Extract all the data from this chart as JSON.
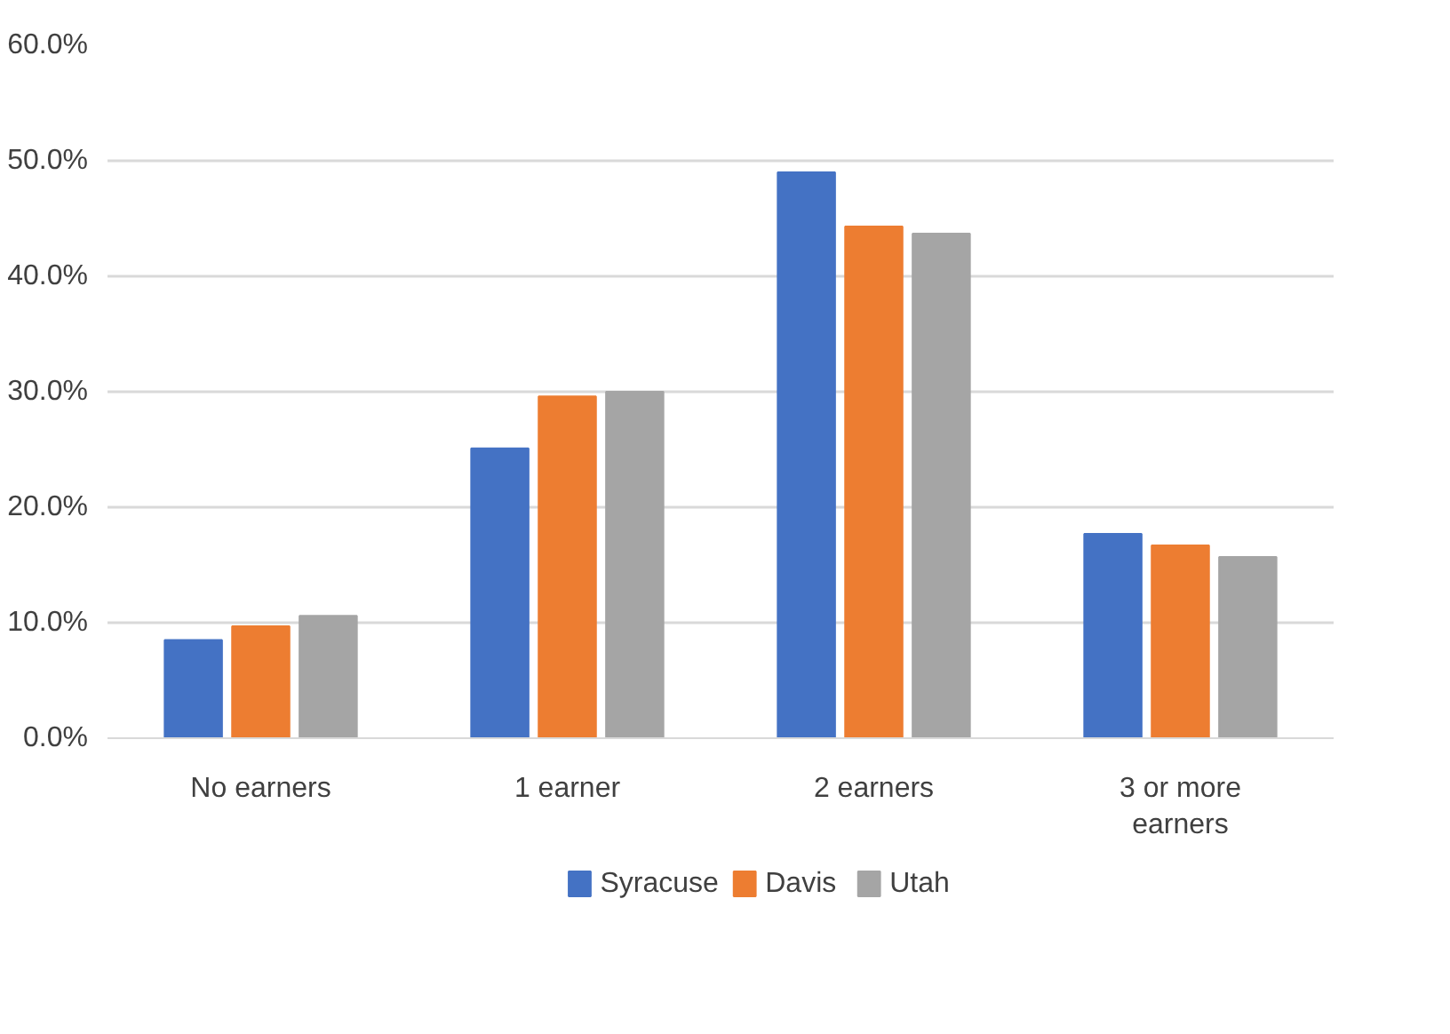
{
  "chart_data": {
    "type": "bar",
    "categories": [
      "No earners",
      "1 earner",
      "2 earners",
      "3 or more earners"
    ],
    "series": [
      {
        "name": "Syracuse",
        "color": "#4472c4",
        "values": [
          8.5,
          25.1,
          49.0,
          17.7
        ]
      },
      {
        "name": "Davis",
        "color": "#ed7d31",
        "values": [
          9.7,
          29.6,
          44.3,
          16.7
        ]
      },
      {
        "name": "Utah",
        "color": "#a5a5a5",
        "values": [
          10.6,
          30.0,
          43.7,
          15.7
        ]
      }
    ],
    "ylim": [
      0,
      60
    ],
    "yticks": [
      {
        "value": 0,
        "label": "0.0%"
      },
      {
        "value": 10,
        "label": "10.0%"
      },
      {
        "value": 20,
        "label": "20.0%"
      },
      {
        "value": 30,
        "label": "30.0%"
      },
      {
        "value": 40,
        "label": "40.0%"
      },
      {
        "value": 50,
        "label": "50.0%"
      },
      {
        "value": 60,
        "label": "60.0%"
      }
    ],
    "grid": "y",
    "legend": "bottom"
  }
}
